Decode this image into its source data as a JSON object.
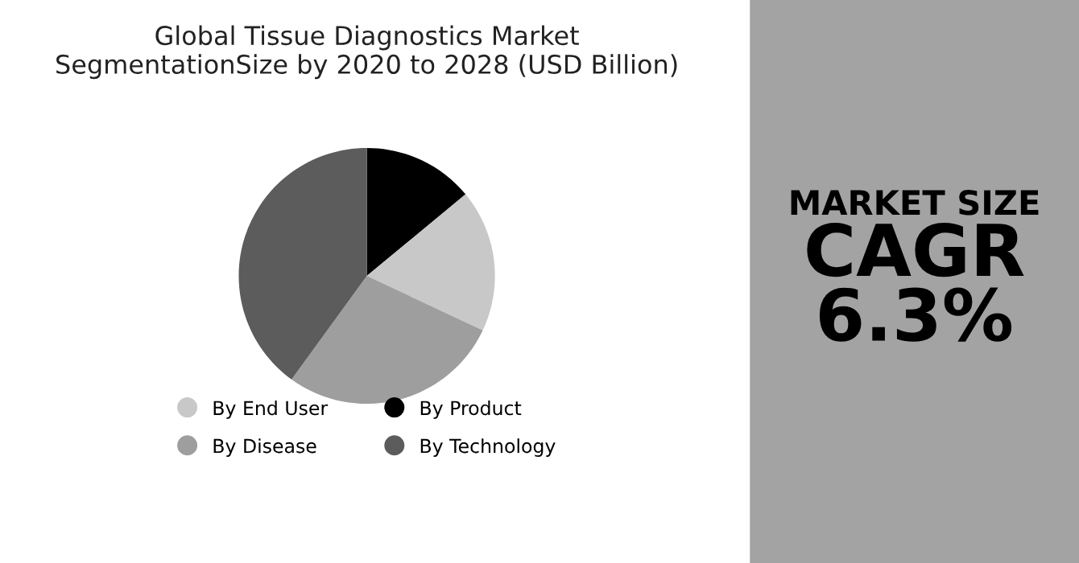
{
  "chart_data": [
    {
      "type": "pie",
      "title": "Global Tissue Diagnostics Market\nSegmentationSize by 2020 to 2028 (USD Billion)",
      "categories": [
        "By Product",
        "By End User",
        "By Disease",
        "By Technology"
      ],
      "values": [
        14,
        18,
        28,
        40
      ],
      "colors": [
        "#000000",
        "#c8c8c8",
        "#9e9e9e",
        "#5c5c5c"
      ],
      "legend": "bottom"
    },
    {
      "type": "other",
      "annotations": [
        "MARKET SIZE",
        "CAGR",
        "6.3%"
      ]
    }
  ]
}
